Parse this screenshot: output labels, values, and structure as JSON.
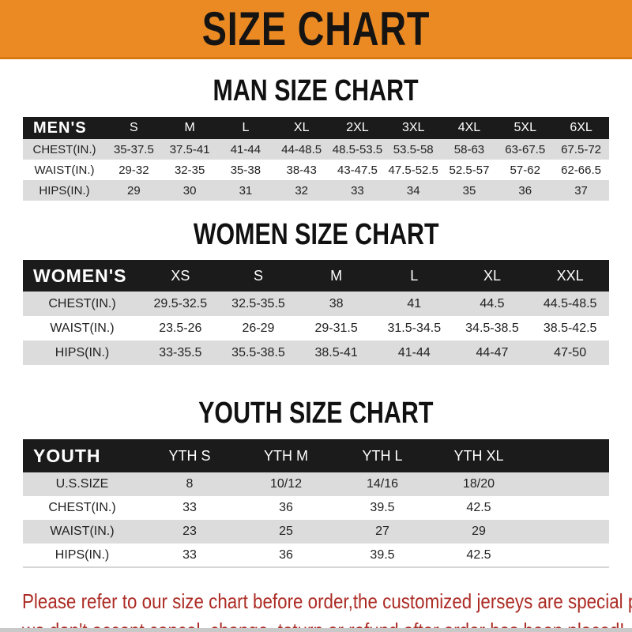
{
  "banner": {
    "title": "SIZE CHART"
  },
  "colors": {
    "banner_orange": "#EB8A23",
    "bar_black": "#1B1B1B",
    "row_gray": "#DCDCDC",
    "note_red": "#AC2B24"
  },
  "men": {
    "heading": "MAN SIZE CHART",
    "label": "MEN'S",
    "columns": [
      "S",
      "M",
      "L",
      "XL",
      "2XL",
      "3XL",
      "4XL",
      "5XL",
      "6XL"
    ],
    "rows": [
      {
        "label": "CHEST(IN.)",
        "values": [
          "35-37.5",
          "37.5-41",
          "41-44",
          "44-48.5",
          "48.5-53.5",
          "53.5-58",
          "58-63",
          "63-67.5",
          "67.5-72"
        ]
      },
      {
        "label": "WAIST(IN.)",
        "values": [
          "29-32",
          "32-35",
          "35-38",
          "38-43",
          "43-47.5",
          "47.5-52.5",
          "52.5-57",
          "57-62",
          "62-66.5"
        ]
      },
      {
        "label": "HIPS(IN.)",
        "values": [
          "29",
          "30",
          "31",
          "32",
          "33",
          "34",
          "35",
          "36",
          "37"
        ]
      }
    ]
  },
  "women": {
    "heading": "WOMEN SIZE CHART",
    "label": "WOMEN'S",
    "columns": [
      "XS",
      "S",
      "M",
      "L",
      "XL",
      "XXL"
    ],
    "rows": [
      {
        "label": "CHEST(IN.)",
        "values": [
          "29.5-32.5",
          "32.5-35.5",
          "38",
          "41",
          "44.5",
          "44.5-48.5"
        ]
      },
      {
        "label": "WAIST(IN.)",
        "values": [
          "23.5-26",
          "26-29",
          "29-31.5",
          "31.5-34.5",
          "34.5-38.5",
          "38.5-42.5"
        ]
      },
      {
        "label": "HIPS(IN.)",
        "values": [
          "33-35.5",
          "35.5-38.5",
          "38.5-41",
          "41-44",
          "44-47",
          "47-50"
        ]
      }
    ]
  },
  "youth": {
    "heading": "YOUTH SIZE CHART",
    "label": "YOUTH",
    "columns": [
      "YTH S",
      "YTH M",
      "YTH L",
      "YTH XL"
    ],
    "rows": [
      {
        "label": "U.S.SIZE",
        "values": [
          "8",
          "10/12",
          "14/16",
          "18/20"
        ]
      },
      {
        "label": "CHEST(IN.)",
        "values": [
          "33",
          "36",
          "39.5",
          "42.5"
        ]
      },
      {
        "label": "WAIST(IN.)",
        "values": [
          "23",
          "25",
          "27",
          "29"
        ]
      },
      {
        "label": "HIPS(IN.)",
        "values": [
          "33",
          "36",
          "39.5",
          "42.5"
        ]
      }
    ]
  },
  "note": {
    "line1": "Please refer to our size chart before order,the customized jerseys are special products,",
    "line2": "we don't accept cancel, change, teturn or refund after order has been placed!"
  },
  "chart_data": [
    {
      "type": "table",
      "title": "MAN SIZE CHART",
      "header": [
        "MEN'S",
        "S",
        "M",
        "L",
        "XL",
        "2XL",
        "3XL",
        "4XL",
        "5XL",
        "6XL"
      ],
      "rows": [
        [
          "CHEST(IN.)",
          "35-37.5",
          "37.5-41",
          "41-44",
          "44-48.5",
          "48.5-53.5",
          "53.5-58",
          "58-63",
          "63-67.5",
          "67.5-72"
        ],
        [
          "WAIST(IN.)",
          "29-32",
          "32-35",
          "35-38",
          "38-43",
          "43-47.5",
          "47.5-52.5",
          "52.5-57",
          "57-62",
          "62-66.5"
        ],
        [
          "HIPS(IN.)",
          "29",
          "30",
          "31",
          "32",
          "33",
          "34",
          "35",
          "36",
          "37"
        ]
      ]
    },
    {
      "type": "table",
      "title": "WOMEN SIZE CHART",
      "header": [
        "WOMEN'S",
        "XS",
        "S",
        "M",
        "L",
        "XL",
        "XXL"
      ],
      "rows": [
        [
          "CHEST(IN.)",
          "29.5-32.5",
          "32.5-35.5",
          "38",
          "41",
          "44.5",
          "44.5-48.5"
        ],
        [
          "WAIST(IN.)",
          "23.5-26",
          "26-29",
          "29-31.5",
          "31.5-34.5",
          "34.5-38.5",
          "38.5-42.5"
        ],
        [
          "HIPS(IN.)",
          "33-35.5",
          "35.5-38.5",
          "38.5-41",
          "41-44",
          "44-47",
          "47-50"
        ]
      ]
    },
    {
      "type": "table",
      "title": "YOUTH SIZE CHART",
      "header": [
        "YOUTH",
        "YTH S",
        "YTH M",
        "YTH L",
        "YTH XL"
      ],
      "rows": [
        [
          "U.S.SIZE",
          "8",
          "10/12",
          "14/16",
          "18/20"
        ],
        [
          "CHEST(IN.)",
          "33",
          "36",
          "39.5",
          "42.5"
        ],
        [
          "WAIST(IN.)",
          "23",
          "25",
          "27",
          "29"
        ],
        [
          "HIPS(IN.)",
          "33",
          "36",
          "39.5",
          "42.5"
        ]
      ]
    }
  ]
}
